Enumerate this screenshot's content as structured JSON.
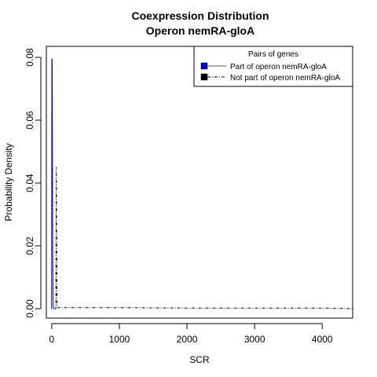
{
  "chart_data": {
    "type": "line",
    "title": "Coexpression Distribution",
    "subtitle": "Operon nemRA-gloA",
    "xlabel": "SCR",
    "ylabel": "Probability Density",
    "xlim": [
      -80,
      4450
    ],
    "ylim": [
      -0.003,
      0.0835
    ],
    "x_ticks": [
      0,
      1000,
      2000,
      3000,
      4000
    ],
    "x_tick_labels": [
      "0",
      "1000",
      "2000",
      "3000",
      "4000"
    ],
    "y_ticks": [
      0,
      0.02,
      0.04,
      0.06,
      0.08
    ],
    "y_tick_labels": [
      "0.00",
      "0.02",
      "0.04",
      "0.06",
      "0.08"
    ],
    "grid": false,
    "legend": {
      "title": "Pairs of genes",
      "placement": "top-right",
      "entries": [
        "Part of operon nemRA-gloA",
        "Not part of operon nemRA-gloA"
      ]
    },
    "series": [
      {
        "name": "Part of operon nemRA-gloA",
        "color": "#0000cc",
        "line_style": "solid",
        "x": [
          -10,
          -2,
          2,
          6,
          10,
          14,
          18,
          22,
          26,
          30
        ],
        "y": [
          0,
          0,
          0.0795,
          0.0795,
          0.05,
          0.02,
          0.005,
          0.001,
          0,
          0
        ]
      },
      {
        "name": "Not part of operon nemRA-gloA",
        "color": "#000000",
        "line_style": "dashdot",
        "x": [
          40,
          60,
          64,
          68,
          72,
          76,
          80,
          86,
          100,
          200,
          500,
          1000,
          2000,
          3000,
          3500,
          4000,
          4200,
          4300,
          4400,
          4450
        ],
        "y": [
          0,
          0,
          0.02,
          0.045,
          0.02,
          0.003,
          0.0005,
          0.0003,
          0.0003,
          0.0003,
          0.0003,
          0.0003,
          0.0002,
          0.0002,
          0.0002,
          0.0002,
          0.0001,
          5e-05,
          2e-05,
          2e-05
        ]
      }
    ]
  }
}
